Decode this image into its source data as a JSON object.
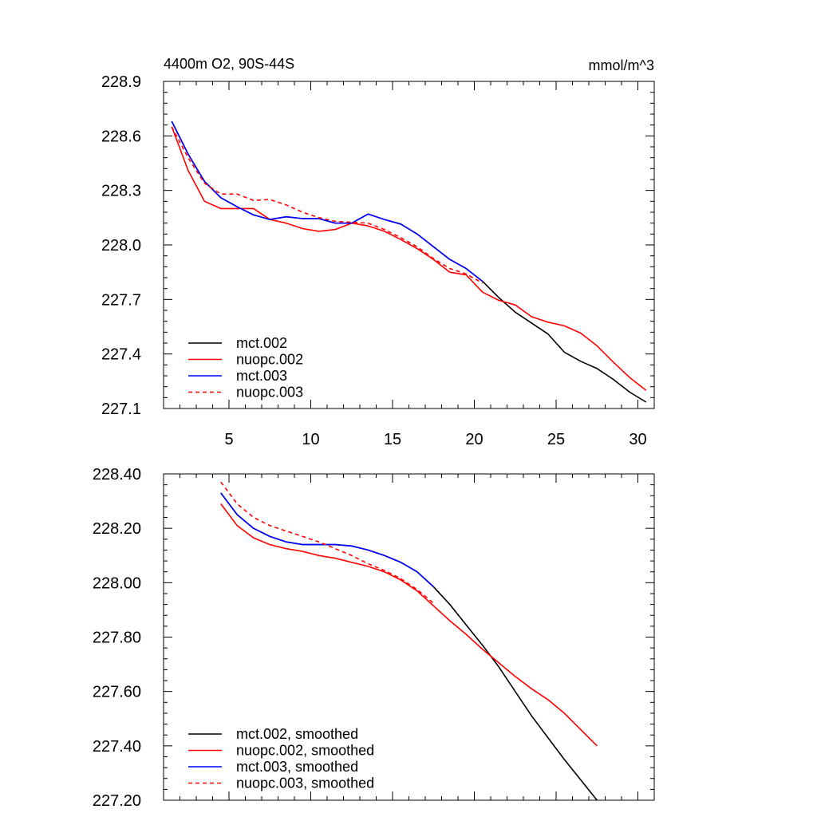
{
  "chart_data": [
    {
      "type": "line",
      "title_left": "4400m O2, 90S-44S",
      "title_right": "mmol/m^3",
      "xlabel": "",
      "ylabel": "",
      "xlim": [
        1,
        31
      ],
      "ylim": [
        227.1,
        228.9
      ],
      "x_ticks": [
        5,
        10,
        15,
        20,
        25,
        30
      ],
      "x_tick_labels": [
        "5",
        "10",
        "15",
        "20",
        "25",
        "30"
      ],
      "y_ticks": [
        227.1,
        227.4,
        227.7,
        228.0,
        228.3,
        228.6,
        228.9
      ],
      "y_tick_labels": [
        "227.1",
        "227.4",
        "227.7",
        "228.0",
        "228.3",
        "228.6",
        "228.9"
      ],
      "legend_position": "bottom-left",
      "series": [
        {
          "name": "mct.002",
          "color": "#000000",
          "dash": "solid",
          "x": [
            1.5,
            2.5,
            3.5,
            4.5,
            5.5,
            6.5,
            7.5,
            8.5,
            9.5,
            10.5,
            11.5,
            12.5,
            13.5,
            14.5,
            15.5,
            16.5,
            17.5,
            18.5,
            19.5,
            20.5,
            21.5,
            22.5,
            23.5,
            24.5,
            25.5,
            26.5,
            27.5,
            28.5,
            29.5,
            30.5
          ],
          "values": [
            228.68,
            228.5,
            228.35,
            228.26,
            228.21,
            228.165,
            228.14,
            228.155,
            228.145,
            228.145,
            228.12,
            228.12,
            228.17,
            228.14,
            228.115,
            228.06,
            227.99,
            227.92,
            227.87,
            227.8,
            227.71,
            227.63,
            227.57,
            227.51,
            227.41,
            227.36,
            227.32,
            227.26,
            227.19,
            227.135
          ]
        },
        {
          "name": "nuopc.002",
          "color": "#ff0000",
          "dash": "solid",
          "x": [
            1.5,
            2.5,
            3.5,
            4.5,
            5.5,
            6.5,
            7.5,
            8.5,
            9.5,
            10.5,
            11.5,
            12.5,
            13.5,
            14.5,
            15.5,
            16.5,
            17.5,
            18.5,
            19.5,
            20.5,
            21.5,
            22.5,
            23.5,
            24.5,
            25.5,
            26.5,
            27.5,
            28.5,
            29.5,
            30.5
          ],
          "values": [
            228.65,
            228.41,
            228.24,
            228.2,
            228.2,
            228.2,
            228.14,
            228.12,
            228.09,
            228.075,
            228.085,
            228.12,
            228.105,
            228.075,
            228.03,
            227.98,
            227.92,
            227.85,
            227.835,
            227.74,
            227.695,
            227.67,
            227.605,
            227.575,
            227.555,
            227.515,
            227.445,
            227.355,
            227.27,
            227.2
          ]
        },
        {
          "name": "mct.003",
          "color": "#0000ff",
          "dash": "solid",
          "x": [
            1.5,
            2.5,
            3.5,
            4.5,
            5.5,
            6.5,
            7.5,
            8.5,
            9.5,
            10.5,
            11.5,
            12.5,
            13.5,
            14.5,
            15.5,
            16.5,
            17.5,
            18.5,
            19.5,
            20.5
          ],
          "values": [
            228.68,
            228.5,
            228.35,
            228.26,
            228.21,
            228.165,
            228.14,
            228.155,
            228.145,
            228.145,
            228.12,
            228.12,
            228.17,
            228.14,
            228.115,
            228.06,
            227.99,
            227.92,
            227.87,
            227.8
          ]
        },
        {
          "name": "nuopc.003",
          "color": "#ff0000",
          "dash": "dashed",
          "x": [
            1.5,
            2.5,
            3.5,
            4.5,
            5.5,
            6.5,
            7.5,
            8.5,
            9.5,
            10.5,
            11.5,
            12.5,
            13.5,
            14.5,
            15.5,
            16.5,
            17.5,
            18.5,
            19.5,
            20.5
          ],
          "values": [
            228.65,
            228.48,
            228.34,
            228.28,
            228.28,
            228.245,
            228.25,
            228.22,
            228.18,
            228.15,
            228.13,
            228.125,
            228.12,
            228.085,
            228.04,
            227.99,
            227.925,
            227.87,
            227.84,
            227.79
          ]
        }
      ]
    },
    {
      "type": "line",
      "title_left": "",
      "title_right": "",
      "xlabel": "",
      "ylabel": "",
      "xlim": [
        1,
        31
      ],
      "ylim": [
        227.2,
        228.4
      ],
      "x_ticks": [
        5,
        10,
        15,
        20,
        25,
        30
      ],
      "x_tick_labels": [],
      "y_ticks": [
        227.2,
        227.4,
        227.6,
        227.8,
        228.0,
        228.2,
        228.4
      ],
      "y_tick_labels": [
        "227.20",
        "227.40",
        "227.60",
        "227.80",
        "228.00",
        "228.20",
        "228.40"
      ],
      "legend_position": "bottom-left",
      "series": [
        {
          "name": "mct.002, smoothed",
          "color": "#000000",
          "dash": "solid",
          "x": [
            4.5,
            5.5,
            6.5,
            7.5,
            8.5,
            9.5,
            10.5,
            11.5,
            12.5,
            13.5,
            14.5,
            15.5,
            16.5,
            17.5,
            18.5,
            19.5,
            20.5,
            21.5,
            22.5,
            23.5,
            24.5,
            25.5,
            26.5,
            27.5
          ],
          "values": [
            228.33,
            228.25,
            228.2,
            228.17,
            228.15,
            228.14,
            228.14,
            228.14,
            228.135,
            228.12,
            228.1,
            228.075,
            228.04,
            227.985,
            227.92,
            227.845,
            227.77,
            227.69,
            227.6,
            227.51,
            227.43,
            227.35,
            227.275,
            227.2
          ]
        },
        {
          "name": "nuopc.002, smoothed",
          "color": "#ff0000",
          "dash": "solid",
          "x": [
            4.5,
            5.5,
            6.5,
            7.5,
            8.5,
            9.5,
            10.5,
            11.5,
            12.5,
            13.5,
            14.5,
            15.5,
            16.5,
            17.5,
            18.5,
            19.5,
            20.5,
            21.5,
            22.5,
            23.5,
            24.5,
            25.5,
            26.5,
            27.5
          ],
          "values": [
            228.29,
            228.21,
            228.165,
            228.14,
            228.125,
            228.115,
            228.1,
            228.09,
            228.075,
            228.06,
            228.04,
            228.01,
            227.97,
            227.915,
            227.86,
            227.81,
            227.755,
            227.705,
            227.655,
            227.61,
            227.57,
            227.52,
            227.46,
            227.4
          ]
        },
        {
          "name": "mct.003, smoothed",
          "color": "#0000ff",
          "dash": "solid",
          "x": [
            4.5,
            5.5,
            6.5,
            7.5,
            8.5,
            9.5,
            10.5,
            11.5,
            12.5,
            13.5,
            14.5,
            15.5,
            16.5,
            17.5
          ],
          "values": [
            228.33,
            228.25,
            228.2,
            228.17,
            228.15,
            228.14,
            228.14,
            228.14,
            228.135,
            228.12,
            228.1,
            228.075,
            228.04,
            227.985
          ]
        },
        {
          "name": "nuopc.003, smoothed",
          "color": "#ff0000",
          "dash": "dashed",
          "x": [
            4.5,
            5.5,
            6.5,
            7.5,
            8.5,
            9.5,
            10.5,
            11.5,
            12.5,
            13.5,
            14.5,
            15.5,
            16.5,
            17.5
          ],
          "values": [
            228.37,
            228.29,
            228.24,
            228.21,
            228.19,
            228.17,
            228.15,
            228.125,
            228.1,
            228.07,
            228.045,
            228.015,
            227.975,
            227.925
          ]
        }
      ]
    }
  ]
}
